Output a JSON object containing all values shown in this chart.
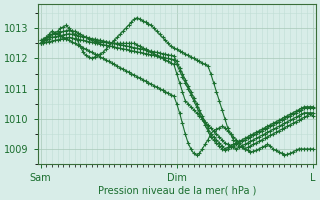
{
  "bg_color": "#d8ede8",
  "grid_color_major": "#a8c8b8",
  "grid_color_minor": "#c0ddd5",
  "line_color": "#1a6e2e",
  "marker_color": "#1a6e2e",
  "xlabel": "Pression niveau de la mer( hPa )",
  "xlabel_color": "#1a6e2e",
  "tick_color": "#1a6e2e",
  "axis_color": "#3a6e3a",
  "ylim": [
    1008.5,
    1013.8
  ],
  "yticks": [
    1009,
    1010,
    1011,
    1012,
    1013
  ],
  "xtick_labels": [
    "Sam",
    "Dim",
    "L"
  ],
  "xtick_positions": [
    0,
    48,
    96
  ],
  "total_points": 97,
  "series": [
    [
      1012.5,
      1012.6,
      1012.7,
      1012.8,
      1012.9,
      1012.85,
      1012.8,
      1012.75,
      1012.7,
      1012.65,
      1012.6,
      1012.55,
      1012.5,
      1012.45,
      1012.4,
      1012.35,
      1012.3,
      1012.25,
      1012.2,
      1012.15,
      1012.1,
      1012.05,
      1012.0,
      1011.95,
      1011.9,
      1011.85,
      1011.8,
      1011.75,
      1011.7,
      1011.65,
      1011.6,
      1011.55,
      1011.5,
      1011.45,
      1011.4,
      1011.35,
      1011.3,
      1011.25,
      1011.2,
      1011.15,
      1011.1,
      1011.05,
      1011.0,
      1010.95,
      1010.9,
      1010.85,
      1010.8,
      1010.75,
      1010.5,
      1010.2,
      1009.85,
      1009.5,
      1009.2,
      1009.0,
      1008.85,
      1008.8,
      1008.85,
      1009.0,
      1009.15,
      1009.3,
      1009.5,
      1009.6,
      1009.65,
      1009.7,
      1009.75,
      1009.7,
      1009.6,
      1009.5,
      1009.4,
      1009.3,
      1009.2,
      1009.1,
      1009.0,
      1008.95,
      1008.9,
      1008.92,
      1008.95,
      1009.0,
      1009.05,
      1009.1,
      1009.15,
      1009.1,
      1009.0,
      1008.95,
      1008.9,
      1008.85,
      1008.8,
      1008.82,
      1008.85,
      1008.9,
      1008.95,
      1009.0,
      1009.0,
      1009.0,
      1009.0,
      1009.0,
      1009.0
    ],
    [
      1012.5,
      1012.6,
      1012.65,
      1012.7,
      1012.8,
      1012.85,
      1012.9,
      1013.0,
      1013.05,
      1013.1,
      1013.0,
      1012.9,
      1012.8,
      1012.6,
      1012.4,
      1012.2,
      1012.1,
      1012.05,
      1012.0,
      1012.05,
      1012.1,
      1012.15,
      1012.2,
      1012.3,
      1012.4,
      1012.5,
      1012.6,
      1012.7,
      1012.8,
      1012.9,
      1013.0,
      1013.1,
      1013.2,
      1013.3,
      1013.35,
      1013.3,
      1013.25,
      1013.2,
      1013.15,
      1013.1,
      1013.0,
      1012.9,
      1012.8,
      1012.7,
      1012.6,
      1012.5,
      1012.4,
      1012.35,
      1012.3,
      1012.25,
      1012.2,
      1012.15,
      1012.1,
      1012.05,
      1012.0,
      1011.95,
      1011.9,
      1011.85,
      1011.8,
      1011.75,
      1011.5,
      1011.2,
      1010.9,
      1010.6,
      1010.3,
      1010.0,
      1009.7,
      1009.5,
      1009.3,
      1009.2,
      1009.1,
      1009.05,
      1009.0,
      1009.05,
      1009.1,
      1009.15,
      1009.2,
      1009.25,
      1009.3,
      1009.35,
      1009.4,
      1009.45,
      1009.5,
      1009.55,
      1009.6,
      1009.65,
      1009.7,
      1009.75,
      1009.8,
      1009.85,
      1009.9,
      1009.95,
      1010.0,
      1010.05,
      1010.1,
      1010.15,
      1010.1
    ],
    [
      1012.6,
      1012.65,
      1012.7,
      1012.75,
      1012.8,
      1012.82,
      1012.85,
      1012.87,
      1012.9,
      1012.92,
      1012.95,
      1012.92,
      1012.9,
      1012.85,
      1012.8,
      1012.75,
      1012.7,
      1012.65,
      1012.6,
      1012.58,
      1012.56,
      1012.55,
      1012.54,
      1012.53,
      1012.52,
      1012.5,
      1012.5,
      1012.5,
      1012.5,
      1012.5,
      1012.5,
      1012.5,
      1012.5,
      1012.5,
      1012.45,
      1012.4,
      1012.35,
      1012.3,
      1012.25,
      1012.2,
      1012.15,
      1012.1,
      1012.05,
      1012.0,
      1011.95,
      1011.9,
      1011.85,
      1011.8,
      1011.5,
      1011.2,
      1010.9,
      1010.6,
      1010.5,
      1010.4,
      1010.3,
      1010.2,
      1010.1,
      1010.0,
      1009.9,
      1009.8,
      1009.7,
      1009.6,
      1009.5,
      1009.4,
      1009.3,
      1009.2,
      1009.15,
      1009.1,
      1009.05,
      1009.0,
      1009.05,
      1009.1,
      1009.15,
      1009.2,
      1009.25,
      1009.3,
      1009.35,
      1009.4,
      1009.45,
      1009.5,
      1009.55,
      1009.6,
      1009.65,
      1009.7,
      1009.75,
      1009.8,
      1009.85,
      1009.9,
      1009.95,
      1010.0,
      1010.05,
      1010.1,
      1010.15,
      1010.2,
      1010.2,
      1010.2,
      1010.2
    ],
    [
      1012.5,
      1012.55,
      1012.6,
      1012.65,
      1012.7,
      1012.72,
      1012.74,
      1012.76,
      1012.78,
      1012.8,
      1012.82,
      1012.8,
      1012.78,
      1012.76,
      1012.74,
      1012.72,
      1012.7,
      1012.68,
      1012.66,
      1012.64,
      1012.62,
      1012.6,
      1012.58,
      1012.56,
      1012.54,
      1012.52,
      1012.5,
      1012.48,
      1012.46,
      1012.44,
      1012.42,
      1012.4,
      1012.38,
      1012.36,
      1012.34,
      1012.32,
      1012.3,
      1012.28,
      1012.26,
      1012.24,
      1012.22,
      1012.2,
      1012.18,
      1012.16,
      1012.14,
      1012.12,
      1012.1,
      1012.08,
      1011.9,
      1011.7,
      1011.5,
      1011.3,
      1011.1,
      1010.9,
      1010.7,
      1010.5,
      1010.3,
      1010.1,
      1009.9,
      1009.7,
      1009.5,
      1009.4,
      1009.3,
      1009.2,
      1009.1,
      1009.0,
      1009.05,
      1009.1,
      1009.15,
      1009.2,
      1009.25,
      1009.3,
      1009.35,
      1009.4,
      1009.45,
      1009.5,
      1009.55,
      1009.6,
      1009.65,
      1009.7,
      1009.75,
      1009.8,
      1009.85,
      1009.9,
      1009.95,
      1010.0,
      1010.05,
      1010.1,
      1010.15,
      1010.2,
      1010.25,
      1010.3,
      1010.35,
      1010.4,
      1010.4,
      1010.4,
      1010.4
    ],
    [
      1012.5,
      1012.52,
      1012.54,
      1012.56,
      1012.58,
      1012.6,
      1012.62,
      1012.64,
      1012.66,
      1012.68,
      1012.7,
      1012.68,
      1012.66,
      1012.64,
      1012.62,
      1012.6,
      1012.58,
      1012.56,
      1012.54,
      1012.52,
      1012.5,
      1012.48,
      1012.46,
      1012.44,
      1012.42,
      1012.4,
      1012.38,
      1012.36,
      1012.34,
      1012.32,
      1012.3,
      1012.28,
      1012.26,
      1012.24,
      1012.22,
      1012.2,
      1012.18,
      1012.16,
      1012.14,
      1012.12,
      1012.1,
      1012.08,
      1012.06,
      1012.04,
      1012.02,
      1012.0,
      1011.98,
      1011.96,
      1011.8,
      1011.6,
      1011.4,
      1011.2,
      1011.0,
      1010.8,
      1010.6,
      1010.4,
      1010.2,
      1010.0,
      1009.8,
      1009.6,
      1009.4,
      1009.3,
      1009.2,
      1009.1,
      1009.0,
      1008.95,
      1009.0,
      1009.05,
      1009.1,
      1009.15,
      1009.2,
      1009.25,
      1009.3,
      1009.35,
      1009.4,
      1009.45,
      1009.5,
      1009.55,
      1009.6,
      1009.65,
      1009.7,
      1009.75,
      1009.8,
      1009.85,
      1009.9,
      1009.95,
      1010.0,
      1010.05,
      1010.1,
      1010.15,
      1010.2,
      1010.25,
      1010.3,
      1010.35,
      1010.35,
      1010.35,
      1010.35
    ]
  ]
}
